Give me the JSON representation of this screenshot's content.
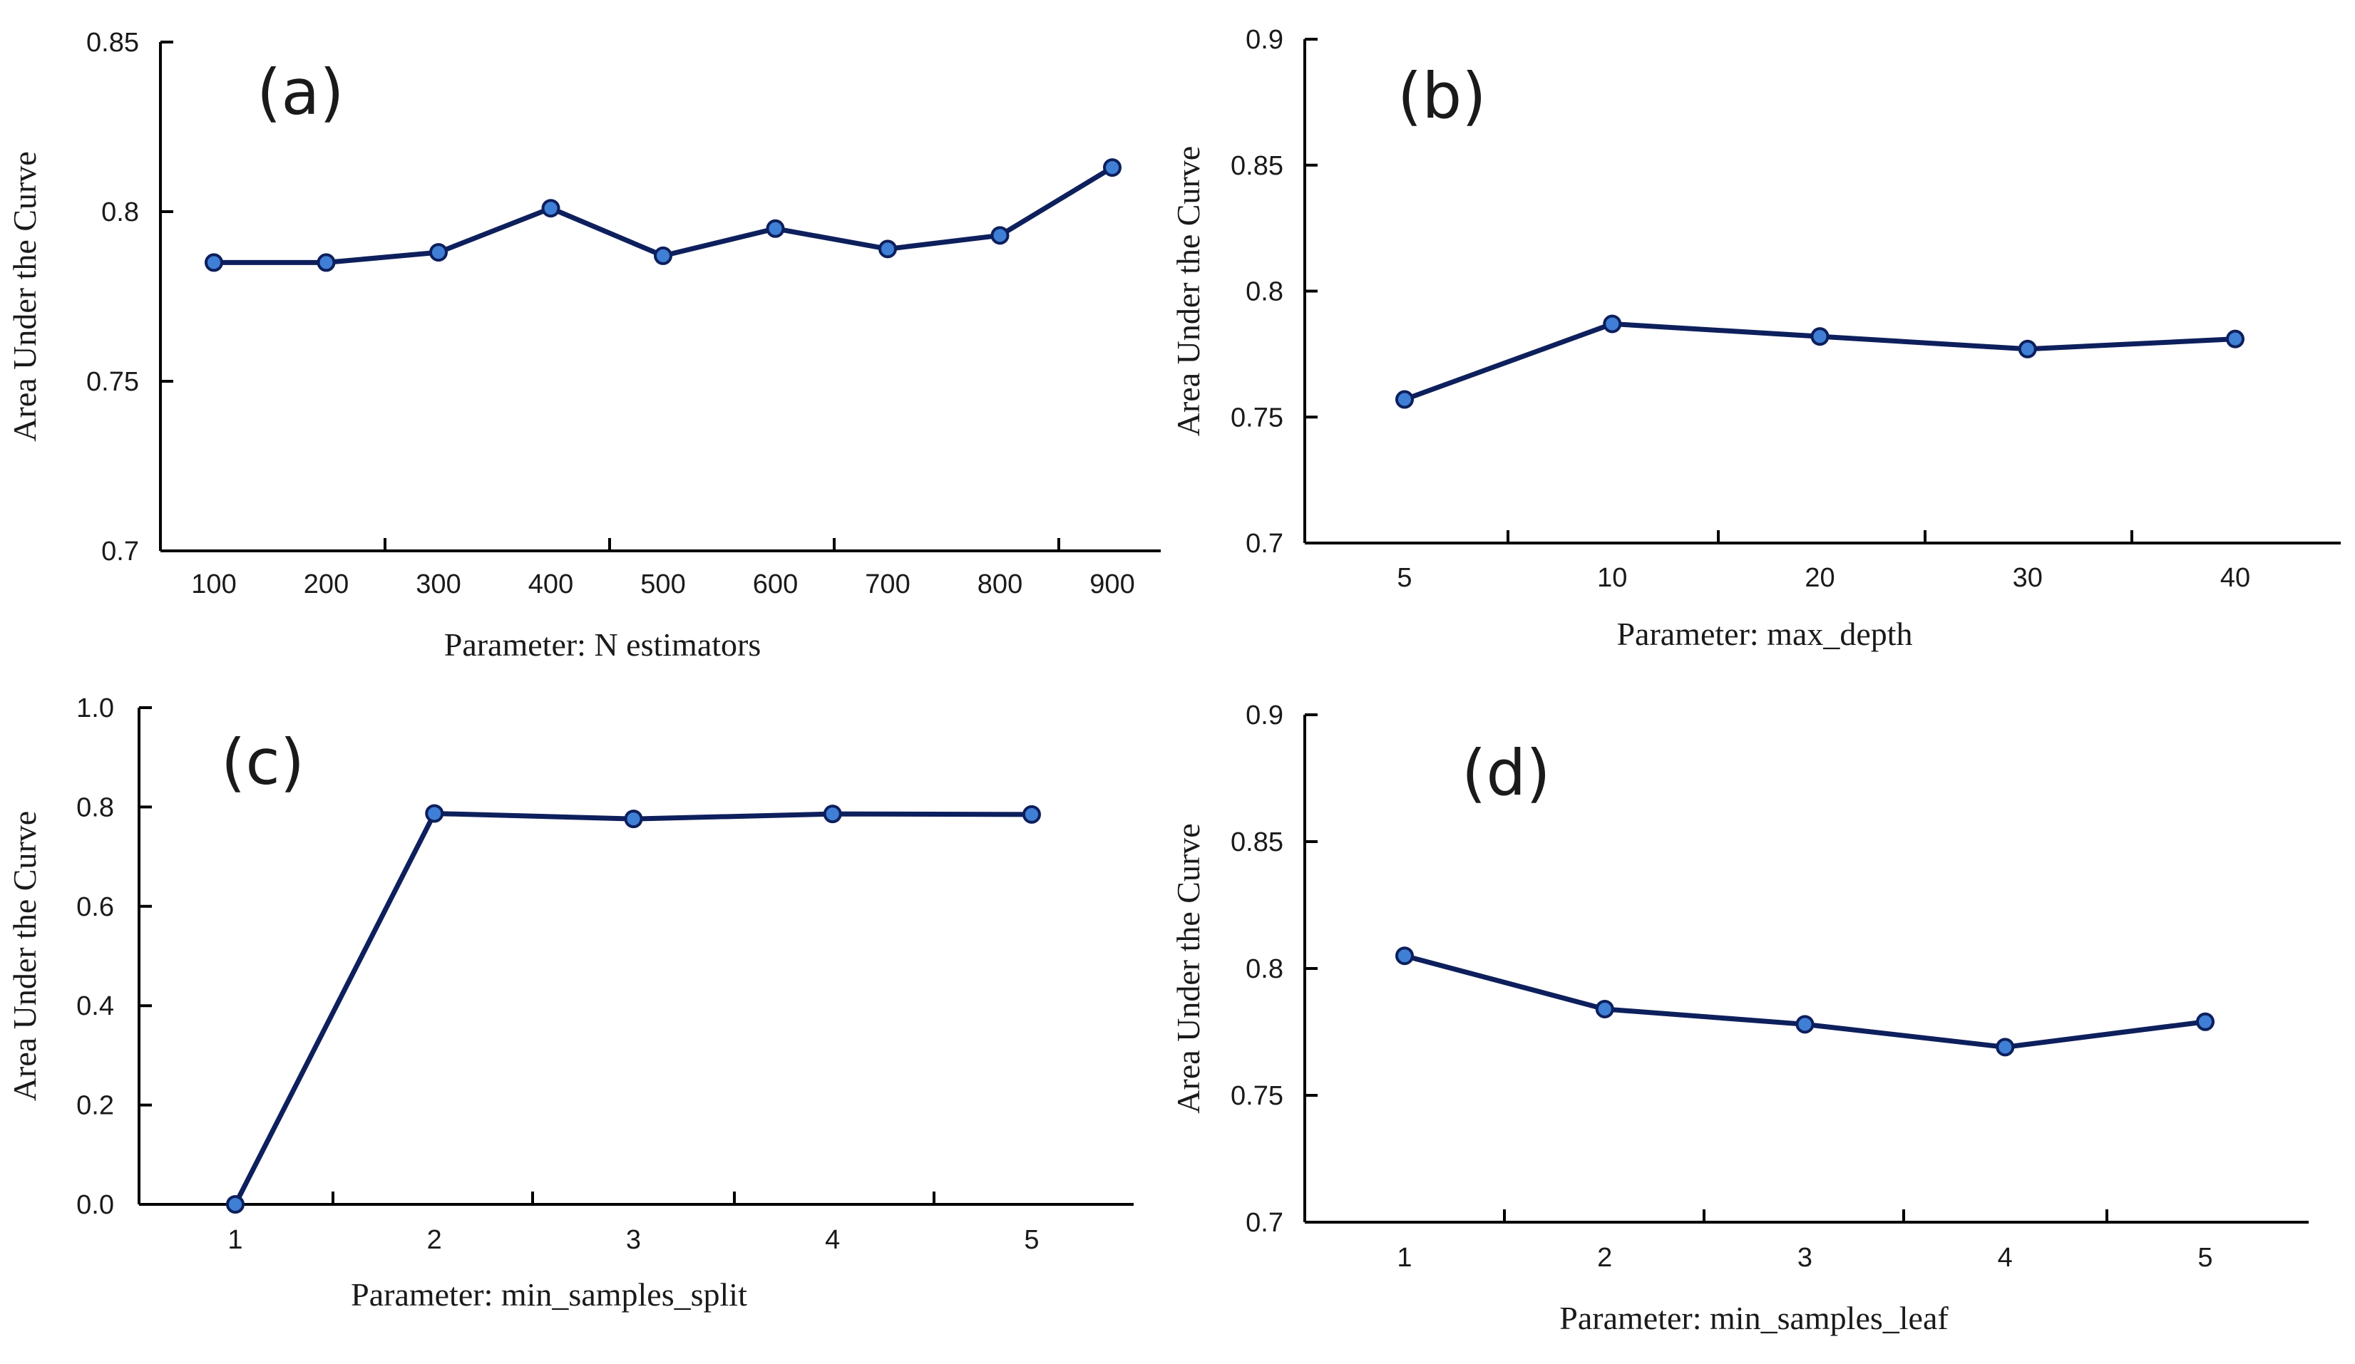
{
  "colors": {
    "line": "#0d1f5c",
    "marker_fill": "#3f7fd6",
    "marker_stroke": "#0d1f5c",
    "axis": "#000000"
  },
  "chart_data": [
    {
      "type": "line",
      "panel": "(a)",
      "xlabel": "Parameter: N  estimators",
      "ylabel": "Area Under the Curve",
      "categories": [
        "100",
        "200",
        "300",
        "400",
        "500",
        "600",
        "700",
        "800",
        "900"
      ],
      "values": [
        0.785,
        0.785,
        0.788,
        0.801,
        0.787,
        0.795,
        0.789,
        0.793,
        0.813
      ],
      "ylim": [
        0.7,
        0.85
      ],
      "yticks": [
        "0.7",
        "0.75",
        "0.8",
        "0.85"
      ]
    },
    {
      "type": "line",
      "panel": "(b)",
      "xlabel": "Parameter: max_depth",
      "ylabel": "Area Under the Curve",
      "categories": [
        "5",
        "10",
        "20",
        "30",
        "40"
      ],
      "values": [
        0.757,
        0.787,
        0.782,
        0.777,
        0.781
      ],
      "ylim": [
        0.7,
        0.9
      ],
      "yticks": [
        "0.7",
        "0.75",
        "0.8",
        "0.85",
        "0.9"
      ]
    },
    {
      "type": "line",
      "panel": "(c)",
      "xlabel": "Parameter: min_samples_split",
      "ylabel": "Area Under the Curve",
      "categories": [
        "1",
        "2",
        "3",
        "4",
        "5"
      ],
      "values": [
        0.0,
        0.787,
        0.776,
        0.786,
        0.785
      ],
      "ylim": [
        0.0,
        1.0
      ],
      "yticks": [
        "0.0",
        "0.2",
        "0.4",
        "0.6",
        "0.8",
        "1.0"
      ]
    },
    {
      "type": "line",
      "panel": "(d)",
      "xlabel": "Parameter: min_samples_leaf",
      "ylabel": "Area Under the Curve",
      "categories": [
        "1",
        "2",
        "3",
        "4",
        "5"
      ],
      "values": [
        0.805,
        0.784,
        0.778,
        0.769,
        0.779
      ],
      "ylim": [
        0.7,
        0.9
      ],
      "yticks": [
        "0.7",
        "0.75",
        "0.8",
        "0.85",
        "0.9"
      ]
    }
  ]
}
